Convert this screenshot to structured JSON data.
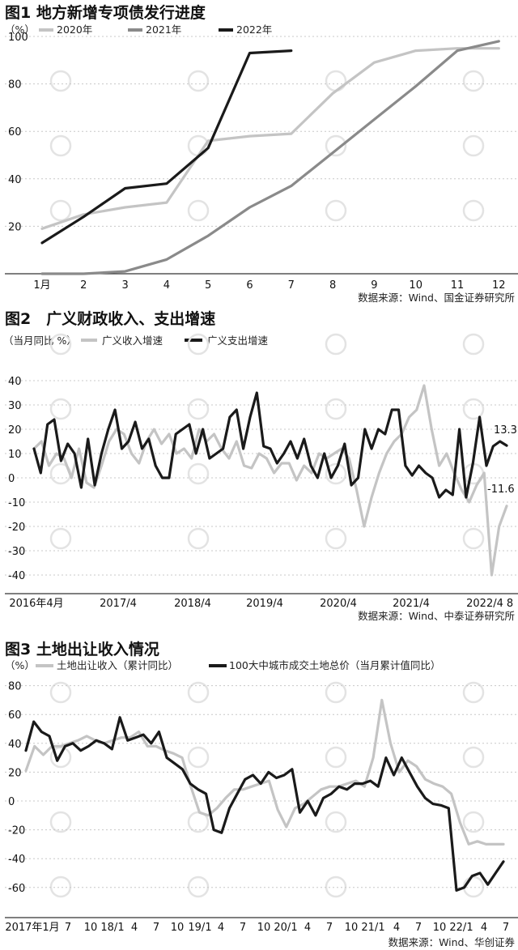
{
  "chart_data": [
    {
      "type": "line",
      "title": "图1  地方新增专项债发行进度",
      "unit_label": "（%）",
      "source": "数据来源：Wind、国金证券研究所",
      "categories": [
        "1月",
        "2",
        "3",
        "4",
        "5",
        "6",
        "7",
        "8",
        "9",
        "10",
        "11",
        "12"
      ],
      "y_ticks": [
        "20",
        "40",
        "60",
        "80",
        "100"
      ],
      "ylim": [
        0,
        100
      ],
      "series": [
        {
          "name": "2020年",
          "color": "#c4c4c4",
          "values": [
            19,
            25,
            28,
            30,
            56,
            58,
            59,
            76,
            89,
            94,
            95,
            95
          ]
        },
        {
          "name": "2021年",
          "color": "#8a8a8a",
          "values": [
            0,
            0,
            1,
            6,
            16,
            28,
            37,
            51,
            65,
            79,
            94,
            98
          ]
        },
        {
          "name": "2022年",
          "color": "#1a1a1a",
          "values": [
            13,
            24,
            36,
            38,
            53,
            93,
            94,
            null,
            null,
            null,
            null,
            null
          ]
        }
      ]
    },
    {
      "type": "line",
      "title": "图2　广义财政收入、支出增速",
      "unit_label": "（当月同比 %）",
      "source": "数据来源：Wind、中泰证券研究所",
      "x_ticks": [
        "2016年4月",
        "2017/4",
        "2018/4",
        "2019/4",
        "2020/4",
        "2021/4",
        "2022/4",
        "8"
      ],
      "y_ticks": [
        "40",
        "30",
        "20",
        "10",
        "0",
        "-10",
        "-20",
        "-30",
        "-40"
      ],
      "ylim": [
        -45,
        50
      ],
      "annotations": [
        "13.3",
        "-11.6"
      ],
      "series": [
        {
          "name": "广义收入增速",
          "color": "#c4c4c4",
          "values": [
            12,
            15,
            5,
            10,
            8,
            0,
            12,
            -2,
            -4,
            5,
            15,
            20,
            18,
            10,
            6,
            15,
            20,
            14,
            18,
            10,
            12,
            8,
            20,
            15,
            18,
            12,
            8,
            15,
            5,
            4,
            10,
            8,
            2,
            6,
            6,
            -1,
            5,
            2,
            10,
            8,
            10,
            12,
            8,
            -5,
            -20,
            -8,
            2,
            10,
            15,
            18,
            25,
            28,
            38,
            20,
            5,
            10,
            2,
            -5,
            -10,
            -3,
            2,
            -40,
            -20,
            -11.6
          ]
        },
        {
          "name": "广义支出增速",
          "color": "#1a1a1a",
          "values": [
            12,
            2,
            22,
            24,
            7,
            14,
            10,
            -4,
            16,
            -3,
            10,
            20,
            28,
            12,
            15,
            23,
            12,
            16,
            5,
            0,
            0,
            18,
            20,
            22,
            10,
            20,
            8,
            10,
            12,
            25,
            28,
            12,
            25,
            35,
            13,
            12,
            6,
            10,
            15,
            8,
            16,
            5,
            0,
            10,
            0,
            5,
            14,
            -3,
            0,
            20,
            12,
            20,
            18,
            28,
            28,
            5,
            1,
            5,
            2,
            0,
            -8,
            -5,
            -7,
            20,
            -8,
            6,
            25,
            5,
            13,
            15,
            13.3
          ]
        }
      ]
    },
    {
      "type": "line",
      "title": "图3  土地出让收入情况",
      "unit_label": "（%）",
      "source": "数据来源：Wind、华创证券",
      "x_ticks": [
        "2017年1月",
        "7",
        "10",
        "18/1",
        "4",
        "7",
        "10",
        "19/1",
        "4",
        "7",
        "10",
        "20/1",
        "4",
        "7",
        "10",
        "21/1",
        "4",
        "7",
        "10",
        "22/1",
        "4",
        "7"
      ],
      "y_ticks": [
        "80",
        "60",
        "40",
        "20",
        "0",
        "-20",
        "-40",
        "-60"
      ],
      "ylim": [
        -70,
        85
      ],
      "series": [
        {
          "name": "土地出让收入（累计同比）",
          "color": "#c4c4c4",
          "values": [
            21,
            38,
            32,
            38,
            38,
            40,
            42,
            45,
            42,
            40,
            42,
            44,
            44,
            48,
            38,
            38,
            35,
            33,
            30,
            10,
            -8,
            -10,
            -5,
            2,
            8,
            8,
            10,
            12,
            14,
            -6,
            -18,
            -5,
            -2,
            3,
            8,
            10,
            10,
            12,
            14,
            10,
            30,
            70,
            40,
            20,
            28,
            24,
            15,
            12,
            10,
            5,
            -15,
            -30,
            -28,
            -30,
            -30,
            -30
          ]
        },
        {
          "name": "100大中城市成交土地总价（当月累计值同比）",
          "color": "#1a1a1a",
          "values": [
            35,
            55,
            48,
            45,
            28,
            38,
            40,
            35,
            38,
            42,
            40,
            36,
            58,
            42,
            44,
            46,
            40,
            48,
            30,
            26,
            22,
            12,
            8,
            5,
            -20,
            -22,
            -5,
            5,
            15,
            18,
            12,
            20,
            16,
            18,
            22,
            -8,
            0,
            -10,
            2,
            5,
            10,
            8,
            12,
            12,
            14,
            10,
            30,
            18,
            30,
            20,
            10,
            2,
            -2,
            -3,
            -5,
            -62,
            -60,
            -52,
            -50,
            -58,
            -50,
            -42
          ]
        }
      ]
    }
  ]
}
